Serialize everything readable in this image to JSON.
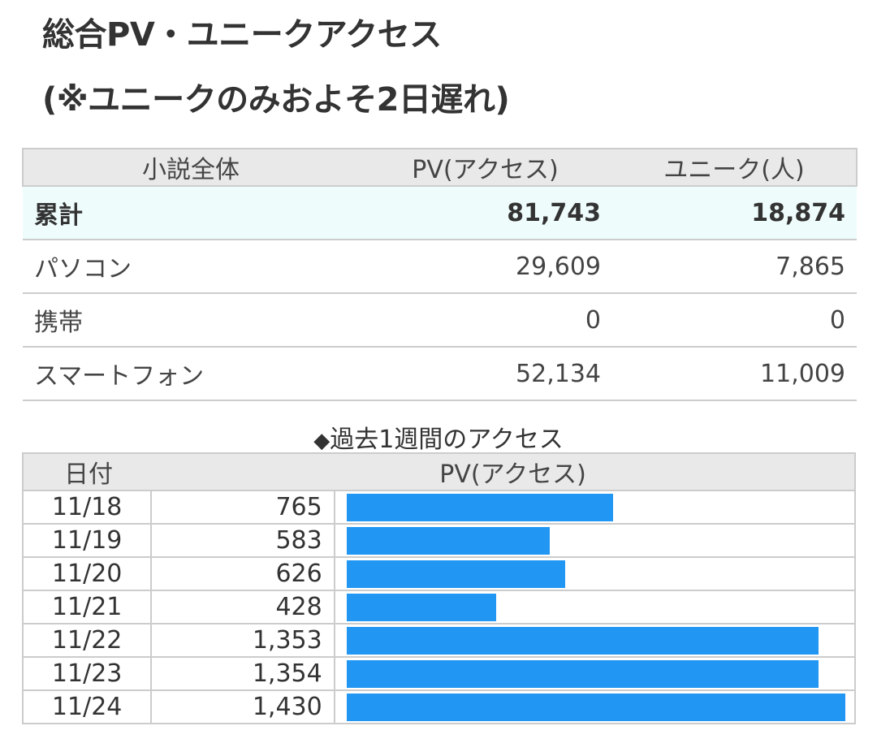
{
  "heading": {
    "line1": "総合PV・ユニークアクセス",
    "line2": "(※ユニークのみおよそ2日遅れ)"
  },
  "summary": {
    "headers": [
      "小説全体",
      "PV(アクセス)",
      "ユニーク(人)"
    ],
    "rows": [
      {
        "label": "累計",
        "pv": "81,743",
        "unique": "18,874"
      },
      {
        "label": "パソコン",
        "pv": "29,609",
        "unique": "7,865"
      },
      {
        "label": "携帯",
        "pv": "0",
        "unique": "0"
      },
      {
        "label": "スマートフォン",
        "pv": "52,134",
        "unique": "11,009"
      }
    ]
  },
  "weekly": {
    "diamond": "◆",
    "title": "過去1週間のアクセス",
    "headers": {
      "date": "日付",
      "pv": "PV(アクセス)"
    },
    "bar_color": "#2196f3",
    "rows": [
      {
        "date": "11/18",
        "pv": "765"
      },
      {
        "date": "11/19",
        "pv": "583"
      },
      {
        "date": "11/20",
        "pv": "626"
      },
      {
        "date": "11/21",
        "pv": "428"
      },
      {
        "date": "11/22",
        "pv": "1,353"
      },
      {
        "date": "11/23",
        "pv": "1,354"
      },
      {
        "date": "11/24",
        "pv": "1,430"
      }
    ]
  },
  "chart_data": {
    "type": "bar",
    "title": "過去1週間のアクセス",
    "xlabel": "日付",
    "ylabel": "PV(アクセス)",
    "categories": [
      "11/18",
      "11/19",
      "11/20",
      "11/21",
      "11/22",
      "11/23",
      "11/24"
    ],
    "values": [
      765,
      583,
      626,
      428,
      1353,
      1354,
      1430
    ],
    "ylim": [
      0,
      1430
    ]
  }
}
